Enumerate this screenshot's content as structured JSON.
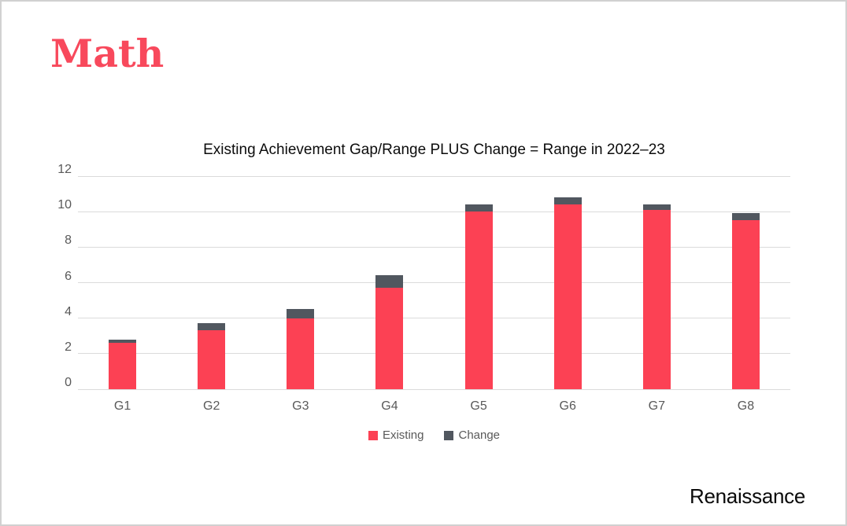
{
  "page": {
    "title": "Math",
    "logo": "Renaissance",
    "colors": {
      "title_red": "#f8495c",
      "existing_red": "#fc4154",
      "change_gray": "#51575f",
      "axis_text": "#595959",
      "gridline": "#dbdbdb",
      "chart_title_text": "#0c0c0c",
      "background": "#ffffff",
      "border": "#d1d1d1"
    }
  },
  "chart_data": {
    "type": "bar",
    "stacked": true,
    "title": "Existing Achievement Gap/Range PLUS Change = Range in 2022–23",
    "categories": [
      "G1",
      "G2",
      "G3",
      "G4",
      "G5",
      "G6",
      "G7",
      "G8"
    ],
    "series": [
      {
        "name": "Existing",
        "color": "#fc4154",
        "values": [
          2.6,
          3.3,
          4.0,
          5.7,
          10.0,
          10.4,
          10.1,
          9.5
        ]
      },
      {
        "name": "Change",
        "color": "#51575f",
        "values": [
          0.2,
          0.4,
          0.5,
          0.7,
          0.4,
          0.4,
          0.3,
          0.4
        ]
      }
    ],
    "totals": [
      2.8,
      3.7,
      4.5,
      6.4,
      10.4,
      10.8,
      10.4,
      9.9
    ],
    "xlabel": "",
    "ylabel": "",
    "ylim": [
      0,
      12
    ],
    "yticks": [
      0,
      2,
      4,
      6,
      8,
      10,
      12
    ],
    "grid": true,
    "legend_position": "bottom"
  }
}
